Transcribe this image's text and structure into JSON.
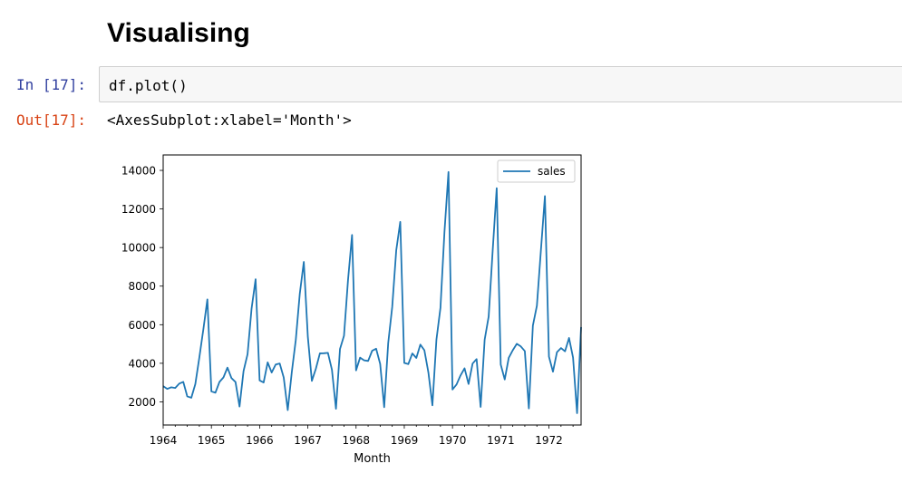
{
  "notebook": {
    "heading": "Visualising",
    "cell": {
      "in_prompt": "In [17]:",
      "code": "df.plot()",
      "out_prompt": "Out[17]:",
      "output": "<AxesSubplot:xlabel='Month'>"
    }
  },
  "chart_data": {
    "type": "line",
    "xlabel": "Month",
    "ylabel": "",
    "xlim": [
      "1964-01",
      "1972-09"
    ],
    "ylim": [
      800,
      14800
    ],
    "x_ticks": [
      "1964",
      "1965",
      "1966",
      "1967",
      "1968",
      "1969",
      "1970",
      "1971",
      "1972"
    ],
    "y_ticks": [
      2000,
      4000,
      6000,
      8000,
      10000,
      12000,
      14000
    ],
    "legend_position": "top-right",
    "grid": false,
    "x": [
      "1964-01",
      "1964-02",
      "1964-03",
      "1964-04",
      "1964-05",
      "1964-06",
      "1964-07",
      "1964-08",
      "1964-09",
      "1964-10",
      "1964-11",
      "1964-12",
      "1965-01",
      "1965-02",
      "1965-03",
      "1965-04",
      "1965-05",
      "1965-06",
      "1965-07",
      "1965-08",
      "1965-09",
      "1965-10",
      "1965-11",
      "1965-12",
      "1966-01",
      "1966-02",
      "1966-03",
      "1966-04",
      "1966-05",
      "1966-06",
      "1966-07",
      "1966-08",
      "1966-09",
      "1966-10",
      "1966-11",
      "1966-12",
      "1967-01",
      "1967-02",
      "1967-03",
      "1967-04",
      "1967-05",
      "1967-06",
      "1967-07",
      "1967-08",
      "1967-09",
      "1967-10",
      "1967-11",
      "1967-12",
      "1968-01",
      "1968-02",
      "1968-03",
      "1968-04",
      "1968-05",
      "1968-06",
      "1968-07",
      "1968-08",
      "1968-09",
      "1968-10",
      "1968-11",
      "1968-12",
      "1969-01",
      "1969-02",
      "1969-03",
      "1969-04",
      "1969-05",
      "1969-06",
      "1969-07",
      "1969-08",
      "1969-09",
      "1969-10",
      "1969-11",
      "1969-12",
      "1970-01",
      "1970-02",
      "1970-03",
      "1970-04",
      "1970-05",
      "1970-06",
      "1970-07",
      "1970-08",
      "1970-09",
      "1970-10",
      "1970-11",
      "1970-12",
      "1971-01",
      "1971-02",
      "1971-03",
      "1971-04",
      "1971-05",
      "1971-06",
      "1971-07",
      "1971-08",
      "1971-09",
      "1971-10",
      "1971-11",
      "1971-12",
      "1972-01",
      "1972-02",
      "1972-03",
      "1972-04",
      "1972-05",
      "1972-06",
      "1972-07",
      "1972-08",
      "1972-09"
    ],
    "series": [
      {
        "name": "sales",
        "color": "#1f77b4",
        "values": [
          2815,
          2672,
          2755,
          2721,
          2946,
          3036,
          2282,
          2212,
          2922,
          4301,
          5764,
          7312,
          2541,
          2475,
          3031,
          3266,
          3776,
          3230,
          3028,
          1759,
          3595,
          4474,
          6838,
          8357,
          3113,
          3006,
          4047,
          3523,
          3937,
          3986,
          3260,
          1573,
          3528,
          5211,
          7614,
          9254,
          5375,
          3088,
          3718,
          4514,
          4520,
          4539,
          3663,
          1643,
          4739,
          5428,
          8314,
          10651,
          3633,
          4292,
          4154,
          4121,
          4647,
          4753,
          3965,
          1723,
          5048,
          6922,
          9858,
          11331,
          4016,
          3957,
          4510,
          4276,
          4968,
          4677,
          3523,
          1821,
          5222,
          6872,
          10803,
          13916,
          2639,
          2899,
          3370,
          3740,
          2927,
          3986,
          4217,
          1738,
          5221,
          6424,
          9842,
          13076,
          3934,
          3162,
          4286,
          4676,
          5010,
          4874,
          4633,
          1659,
          5951,
          6981,
          9851,
          12670,
          4348,
          3564,
          4577,
          4788,
          4618,
          5312,
          4298,
          1413,
          5877
        ]
      }
    ]
  }
}
